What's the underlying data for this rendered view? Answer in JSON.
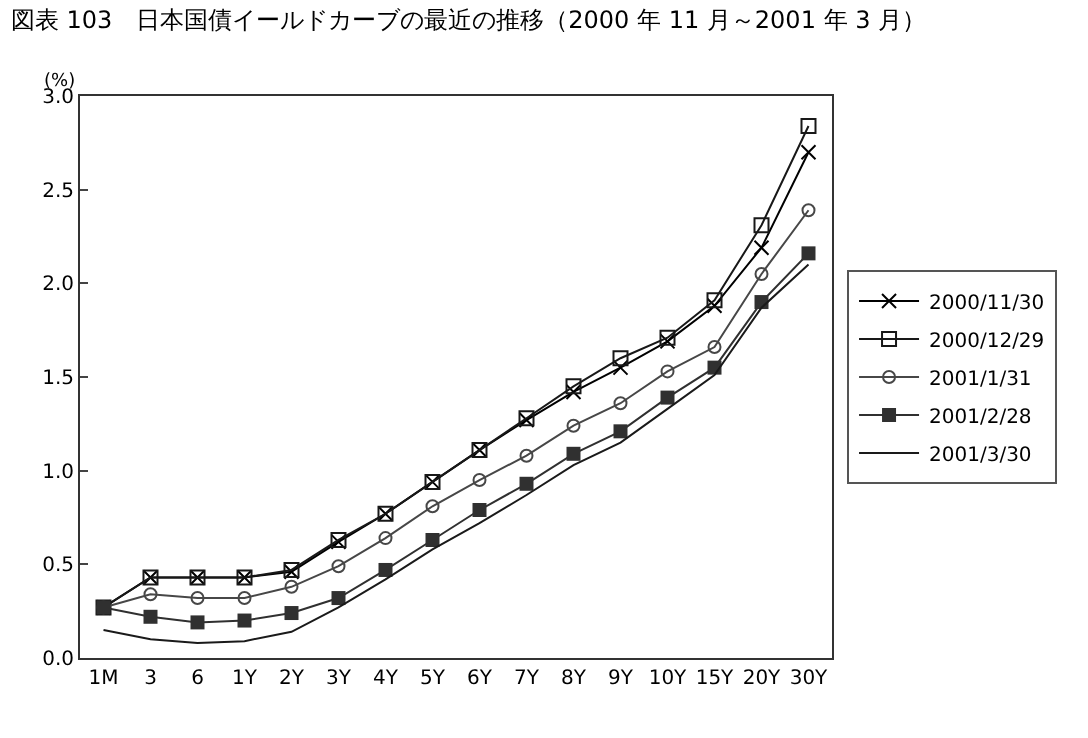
{
  "chart_data": {
    "type": "line",
    "title": "図表 103　日本国債イールドカーブの最近の推移（2000 年 11 月～2001 年 3 月）",
    "ylabel": "(%)",
    "categories": [
      "1M",
      "3",
      "6",
      "1Y",
      "2Y",
      "3Y",
      "4Y",
      "5Y",
      "6Y",
      "7Y",
      "8Y",
      "9Y",
      "10Y",
      "15Y",
      "20Y",
      "30Y"
    ],
    "ylim": [
      0.0,
      3.0
    ],
    "yticks": [
      {
        "value": 0,
        "label": "0.0"
      },
      {
        "value": 0.5,
        "label": "0.5"
      },
      {
        "value": 1,
        "label": "1.0"
      },
      {
        "value": 1.5,
        "label": "1.5"
      },
      {
        "value": 2,
        "label": "2.0"
      },
      {
        "value": 2.5,
        "label": "2.5"
      },
      {
        "value": 3,
        "label": "3.0"
      }
    ],
    "legend": "right",
    "series": [
      {
        "name": "2000/11/30",
        "color": "#000000",
        "marker": "cross",
        "values": [
          0.27,
          0.43,
          0.43,
          0.43,
          0.46,
          0.62,
          0.77,
          0.94,
          1.11,
          1.27,
          1.42,
          1.55,
          1.69,
          1.88,
          2.19,
          2.7
        ]
      },
      {
        "name": "2000/12/29",
        "color": "#181818",
        "marker": "square",
        "values": [
          0.27,
          0.43,
          0.43,
          0.43,
          0.47,
          0.63,
          0.77,
          0.94,
          1.11,
          1.28,
          1.45,
          1.6,
          1.71,
          1.91,
          2.31,
          2.84
        ]
      },
      {
        "name": "2001/1/31",
        "color": "#474747",
        "marker": "circle",
        "values": [
          0.27,
          0.34,
          0.32,
          0.32,
          0.38,
          0.49,
          0.64,
          0.81,
          0.95,
          1.08,
          1.24,
          1.36,
          1.53,
          1.66,
          2.05,
          2.39
        ]
      },
      {
        "name": "2001/2/28",
        "color": "#303030",
        "marker": "square",
        "values": [
          0.27,
          0.22,
          0.19,
          0.2,
          0.24,
          0.32,
          0.47,
          0.63,
          0.79,
          0.93,
          1.09,
          1.21,
          1.39,
          1.55,
          1.9,
          2.16
        ]
      },
      {
        "name": "2001/3/30",
        "color": "#1a1a1a",
        "marker": "none",
        "values": [
          0.15,
          0.1,
          0.08,
          0.09,
          0.14,
          0.27,
          0.42,
          0.58,
          0.72,
          0.87,
          1.03,
          1.15,
          1.33,
          1.51,
          1.87,
          2.1
        ]
      }
    ]
  }
}
